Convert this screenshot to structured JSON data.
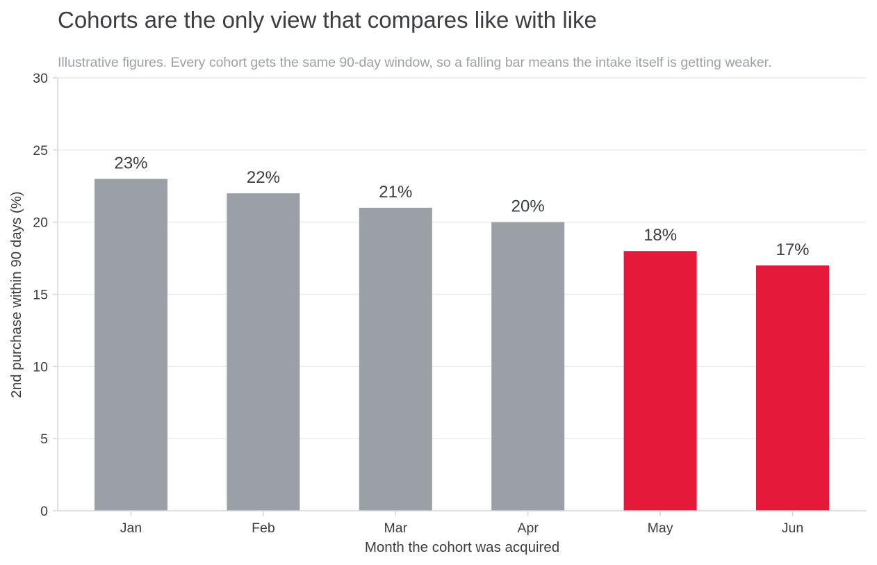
{
  "chart_data": {
    "type": "bar",
    "title": "Cohorts are the only view that compares like with like",
    "subtitle": "Illustrative figures. Every cohort gets the same 90-day window, so a falling bar means the intake itself is getting weaker.",
    "xlabel": "Month the cohort was acquired",
    "ylabel": "2nd purchase within 90 days (%)",
    "categories": [
      "Jan",
      "Feb",
      "Mar",
      "Apr",
      "May",
      "Jun"
    ],
    "values": [
      23,
      22,
      21,
      20,
      18,
      17
    ],
    "data_labels": [
      "23%",
      "22%",
      "21%",
      "20%",
      "18%",
      "17%"
    ],
    "highlighted": [
      false,
      false,
      false,
      false,
      true,
      true
    ],
    "ylim": [
      0,
      30
    ],
    "yticks": [
      0,
      5,
      10,
      15,
      20,
      25,
      30
    ],
    "grid": "horizontal",
    "colors": {
      "bar_default": "#9b9fa6",
      "bar_highlight": "#e5193a",
      "text": "#3a3d42",
      "subtitle": "#9ca0a7",
      "grid": "#ececec",
      "axis": "#d4d6da"
    }
  }
}
